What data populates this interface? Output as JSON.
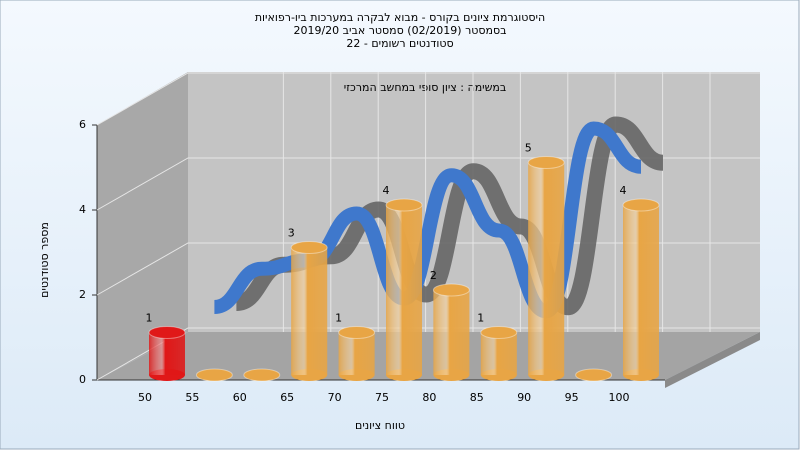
{
  "chart_data": {
    "type": "bar",
    "title": [
      "היסטוגרמת ציונים בקורס - מבוא לבקרה במערכות ביו-רפואיות",
      "בסמסטר  (02/2019)  סמסטר אביב 2019/20",
      "סטודנטים רשומים - 22"
    ],
    "subtitle": "במשימה : ציון סופי במחשב המרכזי",
    "x_label": "טווח ציונים",
    "y_label": "מספר סטודנטים",
    "categories": [
      "50",
      "55",
      "60",
      "65",
      "70",
      "75",
      "80",
      "85",
      "90",
      "95",
      "100"
    ],
    "values": [
      1,
      0,
      0,
      3,
      1,
      4,
      2,
      1,
      5,
      0,
      4
    ],
    "colors": [
      "#e01818",
      "#e8a545",
      "#e8a545",
      "#e8a545",
      "#e8a545",
      "#e8a545",
      "#e8a545",
      "#e8a545",
      "#e8a545",
      "#e8a545",
      "#e8a545"
    ],
    "curve": {
      "values": [
        null,
        1.6,
        2.5,
        2.7,
        3.8,
        1.8,
        4.7,
        3.4,
        1.5,
        5.8,
        4.9
      ],
      "color": "#3f78cc"
    },
    "ylim": [
      0,
      6
    ],
    "yticks": [
      0,
      2,
      4,
      6
    ],
    "grid": true
  }
}
